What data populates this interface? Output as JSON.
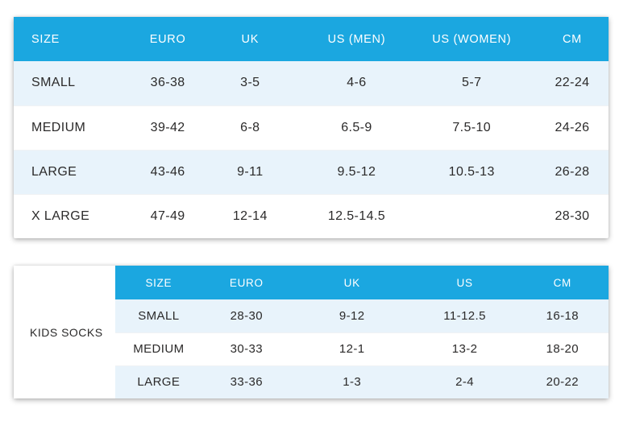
{
  "colors": {
    "header_bg": "#1ba7e0",
    "header_text": "#ffffff",
    "row_alt_bg": "#e8f3fb",
    "row_bg": "#ffffff",
    "body_text": "#2b2a2a"
  },
  "adult_table": {
    "columns": [
      "SIZE",
      "EURO",
      "UK",
      "US (MEN)",
      "US (WOMEN)",
      "CM"
    ],
    "rows": [
      [
        "SMALL",
        "36-38",
        "3-5",
        "4-6",
        "5-7",
        "22-24"
      ],
      [
        "MEDIUM",
        "39-42",
        "6-8",
        "6.5-9",
        "7.5-10",
        "24-26"
      ],
      [
        "LARGE",
        "43-46",
        "9-11",
        "9.5-12",
        "10.5-13",
        "26-28"
      ],
      [
        "X LARGE",
        "47-49",
        "12-14",
        "12.5-14.5",
        "",
        "28-30"
      ]
    ]
  },
  "kids_table": {
    "label": "KIDS SOCKS",
    "columns": [
      "SIZE",
      "EURO",
      "UK",
      "US",
      "CM"
    ],
    "rows": [
      [
        "SMALL",
        "28-30",
        "9-12",
        "11-12.5",
        "16-18"
      ],
      [
        "MEDIUM",
        "30-33",
        "12-1",
        "13-2",
        "18-20"
      ],
      [
        "LARGE",
        "33-36",
        "1-3",
        "2-4",
        "20-22"
      ]
    ]
  }
}
